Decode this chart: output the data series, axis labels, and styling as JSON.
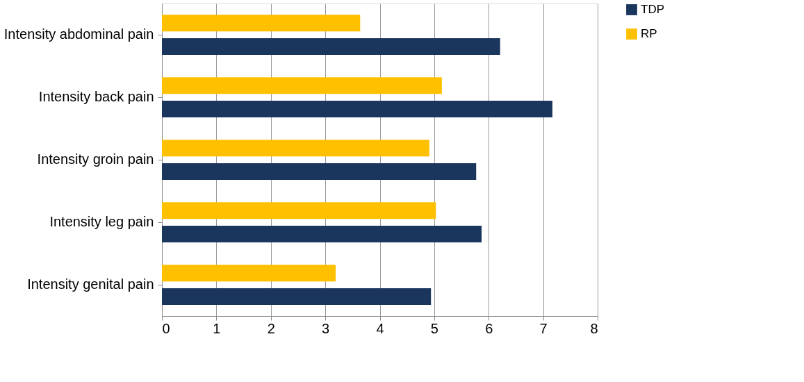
{
  "chart_data": {
    "type": "bar",
    "orientation": "horizontal",
    "categories": [
      "Intensity abdominal pain",
      "Intensity back pain",
      "Intensity groin pain",
      "Intensity leg pain",
      "Intensity genital pain"
    ],
    "series": [
      {
        "name": "TDP",
        "color": "#1b365d",
        "values": [
          6.21,
          7.17,
          5.77,
          5.87,
          4.94
        ]
      },
      {
        "name": "RP",
        "color": "#ffc000",
        "values": [
          3.64,
          5.14,
          4.91,
          5.03,
          3.19
        ]
      }
    ],
    "xlim": [
      0,
      8
    ],
    "xticks": [
      0,
      1,
      2,
      3,
      4,
      5,
      6,
      7,
      8
    ],
    "grid": "x",
    "legend": "right"
  }
}
